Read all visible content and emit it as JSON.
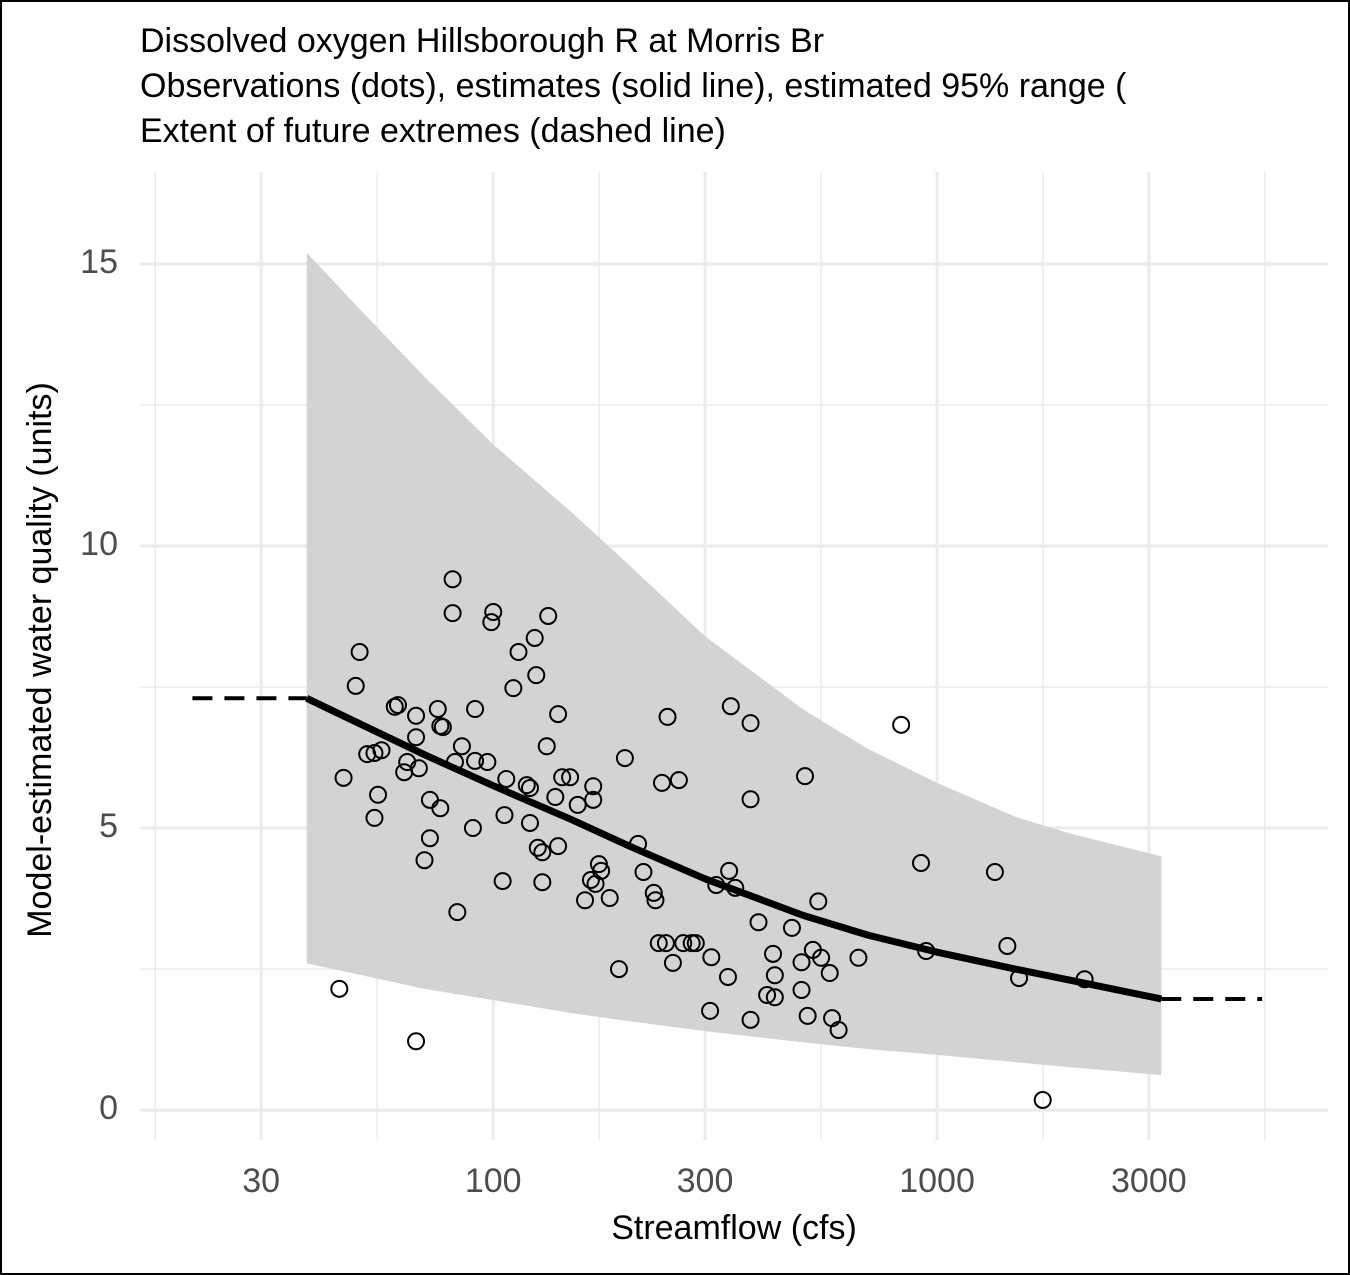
{
  "chart_data": {
    "type": "scatter",
    "title": "Dissolved oxygen Hillsborough R at Morris Br",
    "subtitle": [
      "Observations (dots), estimates (solid line), estimated 95% range (",
      "Extent of future extremes (dashed line)"
    ],
    "x_label": "Streamflow (cfs)",
    "y_label": "Model-estimated water quality (units)",
    "xscale": "log",
    "xlim": [
      16,
      7600
    ],
    "ylim": [
      -0.53,
      16.63
    ],
    "xticks": [
      30,
      100,
      300,
      1000,
      3000
    ],
    "x_minor_ticks": [
      17.32,
      54.77,
      173.2,
      547.7,
      1732,
      5477
    ],
    "yticks": [
      0,
      5,
      10,
      15
    ],
    "y_minor_ticks": [
      2.5,
      7.5,
      12.5
    ],
    "grid": true,
    "point_color": "#000000",
    "x": [
      45,
      46,
      50,
      49,
      52,
      54,
      55,
      56,
      54,
      60,
      61,
      63,
      64,
      67,
      67,
      67,
      68,
      70,
      72,
      72,
      75,
      76,
      76,
      77,
      81,
      81,
      83,
      85,
      82,
      90,
      91,
      91,
      97,
      100,
      99,
      105,
      106,
      107,
      111,
      114,
      119,
      121,
      121,
      124,
      125,
      126,
      129,
      129,
      132,
      133,
      138,
      140,
      140,
      143,
      149,
      155,
      161,
      166,
      168,
      168,
      170,
      173,
      175,
      183,
      192,
      198,
      212,
      218,
      230,
      232,
      236,
      240,
      245,
      247,
      254,
      262,
      268,
      280,
      286,
      308,
      310,
      338,
      340,
      343,
      318,
      351,
      380,
      380,
      380,
      396,
      414,
      427,
      431,
      431,
      471,
      495,
      504,
      495,
      511,
      525,
      540,
      548,
      573,
      580,
      600,
      665,
      830,
      920,
      945,
      1350,
      1440,
      1530,
      1730,
      2150
    ],
    "y": [
      2.15,
      5.89,
      8.12,
      7.52,
      6.31,
      5.18,
      5.59,
      6.38,
      6.33,
      7.15,
      7.18,
      5.99,
      6.17,
      1.22,
      6.99,
      6.61,
      6.06,
      4.43,
      4.82,
      5.5,
      7.11,
      5.35,
      6.81,
      6.79,
      9.41,
      8.81,
      3.51,
      6.45,
      6.17,
      5.0,
      7.11,
      6.19,
      6.17,
      8.83,
      8.65,
      4.06,
      5.23,
      5.87,
      7.48,
      8.12,
      5.76,
      5.71,
      5.09,
      8.37,
      7.71,
      4.65,
      4.04,
      4.57,
      6.45,
      8.76,
      5.55,
      7.02,
      4.68,
      5.9,
      5.9,
      5.41,
      3.72,
      4.08,
      5.5,
      5.74,
      4.01,
      4.36,
      4.24,
      3.76,
      2.5,
      6.24,
      4.72,
      4.22,
      3.85,
      3.72,
      2.96,
      5.8,
      2.96,
      6.97,
      2.61,
      5.85,
      2.96,
      2.96,
      2.96,
      1.76,
      2.71,
      2.36,
      4.24,
      7.16,
      3.99,
      3.94,
      6.86,
      5.51,
      1.6,
      3.33,
      2.04,
      2.77,
      2.39,
      2.0,
      3.23,
      2.13,
      5.92,
      2.62,
      1.67,
      2.84,
      3.7,
      2.7,
      2.43,
      1.63,
      1.42,
      2.7,
      6.83,
      4.38,
      2.82,
      4.22,
      2.91,
      2.34,
      0.18,
      2.32
    ],
    "estimate": {
      "color": "#000000",
      "x": [
        38,
        50,
        70,
        100,
        150,
        200,
        300,
        500,
        700,
        1000,
        1500,
        2000,
        3200
      ],
      "values": [
        7.3,
        6.85,
        6.3,
        5.75,
        5.15,
        4.7,
        4.1,
        3.45,
        3.1,
        2.8,
        2.5,
        2.3,
        1.97
      ]
    },
    "band": {
      "color": "#d3d3d3",
      "x": [
        38,
        50,
        70,
        100,
        150,
        200,
        300,
        500,
        700,
        1000,
        1500,
        2000,
        3200
      ],
      "upper": [
        15.2,
        14.2,
        13.0,
        11.8,
        10.6,
        9.7,
        8.4,
        7.1,
        6.4,
        5.8,
        5.2,
        4.9,
        4.5
      ],
      "lower": [
        2.6,
        2.4,
        2.15,
        1.95,
        1.72,
        1.58,
        1.4,
        1.2,
        1.08,
        0.98,
        0.85,
        0.76,
        0.62
      ]
    },
    "extremes": [
      {
        "x": [
          21,
          38
        ],
        "values": [
          7.3,
          7.3
        ]
      },
      {
        "x": [
          3200,
          5400
        ],
        "values": [
          1.97,
          1.97
        ]
      }
    ]
  }
}
